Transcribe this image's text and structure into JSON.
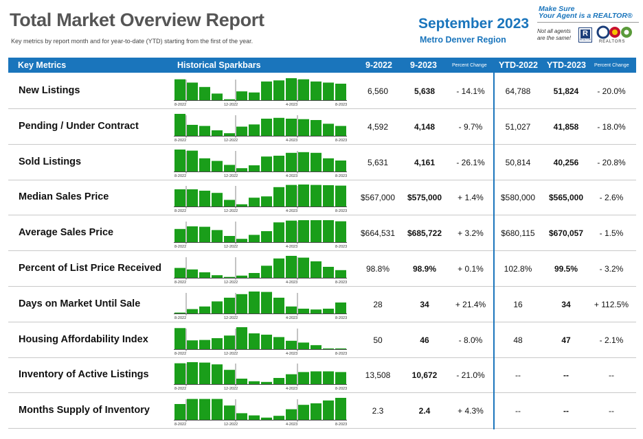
{
  "header": {
    "title": "Total Market Overview Report",
    "subtitle": "Key metrics by report month and for year-to-date (YTD) starting from the first of the year.",
    "month": "September 2023",
    "region": "Metro Denver Region"
  },
  "brand": {
    "tagline_1": "Make Sure",
    "tagline_2": "Your Agent is a REALTOR®",
    "note_1": "Not all agents",
    "note_2": "are the same!",
    "realtor_mark": "R",
    "realtor_small": "REALTOR",
    "association": "REALTORS"
  },
  "columns": {
    "metric": "Key Metrics",
    "spark": "Historical Sparkbars",
    "prev": "9-2022",
    "curr": "9-2023",
    "pct": "Percent Change",
    "ytd_prev": "YTD-2022",
    "ytd_curr": "YTD-2023",
    "ytd_pct": "Percent Change"
  },
  "bar_color": "#1a9e1a",
  "accent_color": "#1a75bc",
  "sparkbar_axis_labels": [
    "8-2022",
    "12-2022",
    "4-2023",
    "8-2023"
  ],
  "rows": [
    {
      "label": "New Listings",
      "prev": "6,560",
      "curr": "5,638",
      "pct": "- 14.1%",
      "ytd_prev": "64,788",
      "ytd_curr": "51,824",
      "ytd_pct": "- 20.0%",
      "bars": [
        0.95,
        0.8,
        0.6,
        0.3,
        0.04,
        0.4,
        0.35,
        0.85,
        0.9,
        1.0,
        0.95,
        0.85,
        0.8,
        0.75
      ]
    },
    {
      "label": "Pending / Under Contract",
      "prev": "4,592",
      "curr": "4,148",
      "pct": "- 9.7%",
      "ytd_prev": "51,027",
      "ytd_curr": "41,858",
      "ytd_pct": "- 18.0%",
      "bars": [
        1.0,
        0.5,
        0.45,
        0.25,
        0.12,
        0.42,
        0.52,
        0.78,
        0.82,
        0.78,
        0.76,
        0.72,
        0.55,
        0.45
      ]
    },
    {
      "label": "Sold Listings",
      "prev": "5,631",
      "curr": "4,161",
      "pct": "- 26.1%",
      "ytd_prev": "50,814",
      "ytd_curr": "40,256",
      "ytd_pct": "- 20.8%",
      "bars": [
        1.0,
        0.95,
        0.6,
        0.48,
        0.3,
        0.15,
        0.28,
        0.68,
        0.72,
        0.85,
        0.88,
        0.85,
        0.6,
        0.5
      ]
    },
    {
      "label": "Median Sales Price",
      "prev": "$567,000",
      "curr": "$575,000",
      "pct": "+ 1.4%",
      "ytd_prev": "$580,000",
      "ytd_curr": "$565,000",
      "ytd_pct": "- 2.6%",
      "bars": [
        0.78,
        0.78,
        0.72,
        0.62,
        0.3,
        0.1,
        0.4,
        0.46,
        0.88,
        0.98,
        1.0,
        0.98,
        0.97,
        0.95
      ]
    },
    {
      "label": "Average Sales Price",
      "prev": "$664,531",
      "curr": "$685,722",
      "pct": "+ 3.2%",
      "ytd_prev": "$680,115",
      "ytd_curr": "$670,057",
      "ytd_pct": "- 1.5%",
      "bars": [
        0.6,
        0.72,
        0.7,
        0.55,
        0.28,
        0.15,
        0.33,
        0.5,
        0.9,
        0.98,
        1.0,
        1.0,
        1.0,
        0.95
      ]
    },
    {
      "label": "Percent of List Price Received",
      "prev": "98.8%",
      "curr": "98.9%",
      "pct": "+ 0.1%",
      "ytd_prev": "102.8%",
      "ytd_curr": "99.5%",
      "ytd_pct": "- 3.2%",
      "bars": [
        0.45,
        0.38,
        0.25,
        0.12,
        0.04,
        0.1,
        0.22,
        0.55,
        0.88,
        1.0,
        0.92,
        0.75,
        0.5,
        0.35
      ]
    },
    {
      "label": "Days on Market Until Sale",
      "prev": "28",
      "curr": "34",
      "pct": "+ 21.4%",
      "ytd_prev": "16",
      "ytd_curr": "34",
      "ytd_pct": "+ 112.5%",
      "bars": [
        0.04,
        0.2,
        0.32,
        0.55,
        0.72,
        0.88,
        1.0,
        0.98,
        0.72,
        0.32,
        0.22,
        0.18,
        0.22,
        0.5
      ]
    },
    {
      "label": "Housing Affordability Index",
      "prev": "50",
      "curr": "46",
      "pct": "- 8.0%",
      "ytd_prev": "48",
      "ytd_curr": "47",
      "ytd_pct": "- 2.1%",
      "bars": [
        0.96,
        0.4,
        0.42,
        0.5,
        0.62,
        1.0,
        0.72,
        0.66,
        0.55,
        0.38,
        0.3,
        0.18,
        0.03,
        0.02
      ]
    },
    {
      "label": "Inventory of Active Listings",
      "prev": "13,508",
      "curr": "10,672",
      "pct": "- 21.0%",
      "ytd_prev": "--",
      "ytd_curr": "--",
      "ytd_pct": "--",
      "bars": [
        0.95,
        1.0,
        0.98,
        0.9,
        0.65,
        0.25,
        0.13,
        0.1,
        0.28,
        0.45,
        0.55,
        0.58,
        0.58,
        0.55
      ]
    },
    {
      "label": "Months Supply of Inventory",
      "prev": "2.3",
      "curr": "2.4",
      "pct": "+ 4.3%",
      "ytd_prev": "--",
      "ytd_curr": "--",
      "ytd_pct": "--",
      "bars": [
        0.72,
        0.95,
        0.95,
        0.95,
        0.65,
        0.3,
        0.2,
        0.1,
        0.18,
        0.48,
        0.68,
        0.75,
        0.88,
        1.0
      ]
    }
  ]
}
